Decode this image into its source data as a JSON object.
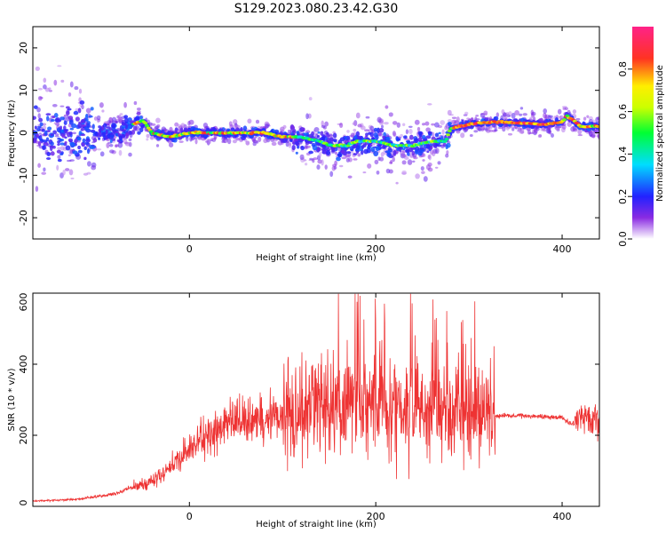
{
  "title": "S129.2023.080.23.42.G30",
  "colorbar": {
    "label": "Normalized spectral amplitude",
    "ticks": [
      "0.0",
      "0.2",
      "0.4",
      "0.6",
      "0.8"
    ]
  },
  "chart_data": [
    {
      "type": "heatmap",
      "xlabel": "Height of straight line (km)",
      "ylabel": "Frequency (Hz)",
      "xlim": [
        -168,
        440
      ],
      "ylim": [
        -25,
        25
      ],
      "xticks": [
        0,
        200,
        400
      ],
      "yticks": [
        -20,
        -10,
        0,
        10,
        20
      ],
      "grid": false,
      "ridge": {
        "x": [
          -168,
          -120,
          -80,
          -60,
          -50,
          -40,
          -20,
          0,
          40,
          80,
          100,
          120,
          140,
          150,
          160,
          170,
          180,
          200,
          220,
          240,
          260,
          275,
          280,
          300,
          320,
          340,
          380,
          400,
          405,
          420,
          440
        ],
        "y": [
          0,
          0,
          0,
          2,
          3,
          0,
          -1,
          0,
          0,
          0,
          -1,
          -1,
          -2,
          -3,
          -3,
          -3,
          -2,
          -2,
          -3,
          -3,
          -2,
          -2,
          1,
          2,
          2.5,
          2.5,
          2,
          2.5,
          4,
          1.5,
          1.5
        ]
      }
    },
    {
      "type": "line",
      "xlabel": "Height of straight line (km)",
      "ylabel": "SNR (10 * v/v)",
      "xlim": [
        -168,
        440
      ],
      "ylim": [
        0,
        600
      ],
      "xticks": [
        0,
        200,
        400
      ],
      "yticks": [
        0,
        200,
        400,
        600
      ],
      "grid": false,
      "color": "#ee3333",
      "envelope": {
        "x": [
          -168,
          -120,
          -80,
          -60,
          -40,
          -20,
          0,
          20,
          40,
          60,
          80,
          100,
          120,
          140,
          160,
          180,
          200,
          220,
          240,
          260,
          280,
          300,
          320,
          325,
          330,
          360,
          400,
          410,
          420,
          440
        ],
        "y": [
          15,
          20,
          35,
          55,
          70,
          110,
          160,
          200,
          230,
          240,
          250,
          260,
          275,
          285,
          290,
          295,
          290,
          285,
          285,
          280,
          280,
          270,
          260,
          258,
          255,
          255,
          250,
          230,
          260,
          240
        ]
      }
    }
  ]
}
